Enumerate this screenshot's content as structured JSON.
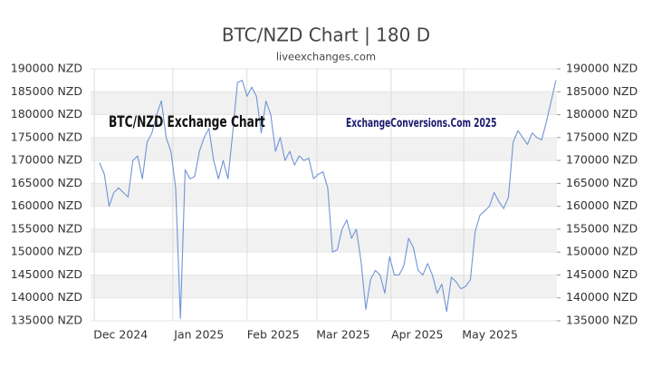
{
  "chart_data": {
    "type": "line",
    "title": "BTC/NZD Chart | 180 D",
    "subtitle": "liveexchanges.com",
    "annotations": [
      "BTC/NZD Exchange Chart",
      "ExchangeConversions.Com 2025"
    ],
    "series": [
      {
        "name": "BTC/NZD",
        "color": "#7094d6",
        "values": [
          169500,
          167000,
          160000,
          163000,
          164000,
          163000,
          162000,
          170000,
          171000,
          166000,
          174000,
          176000,
          180000,
          183000,
          175000,
          172000,
          164000,
          135500,
          168000,
          166000,
          166500,
          172000,
          175000,
          177000,
          170000,
          166000,
          170000,
          166000,
          176000,
          187000,
          187500,
          184000,
          186000,
          184000,
          176000,
          183000,
          180000,
          172000,
          175000,
          170000,
          172000,
          169000,
          171000,
          170000,
          170500,
          166000,
          167000,
          167500,
          164000,
          150000,
          150500,
          155000,
          157000,
          153000,
          155000,
          148000,
          137500,
          144000,
          146000,
          145000,
          141000,
          149000,
          145000,
          145000,
          147000,
          153000,
          151000,
          146000,
          145000,
          147500,
          145000,
          141000,
          143000,
          137000,
          144500,
          143500,
          142000,
          142500,
          144000,
          154500,
          158000,
          159000,
          160000,
          163000,
          161000,
          159500,
          162000,
          174000,
          176500,
          175000,
          173500,
          176000,
          175000,
          174500,
          178500,
          183000,
          187500
        ]
      }
    ],
    "xlim": [
      -1.9,
      96.2
    ],
    "xticks": [
      {
        "value": -1.1,
        "label": "Dec 2024"
      },
      {
        "value": 15.4,
        "label": "Jan 2025"
      },
      {
        "value": 31.0,
        "label": "Feb 2025"
      },
      {
        "value": 45.7,
        "label": "Mar 2025"
      },
      {
        "value": 61.3,
        "label": "Apr 2025"
      },
      {
        "value": 76.6,
        "label": "May 2025"
      }
    ],
    "ylim": [
      135000,
      190000
    ],
    "yticks": [
      {
        "value": 135000,
        "label": "135000 NZD"
      },
      {
        "value": 140000,
        "label": "140000 NZD"
      },
      {
        "value": 145000,
        "label": "145000 NZD"
      },
      {
        "value": 150000,
        "label": "150000 NZD"
      },
      {
        "value": 155000,
        "label": "155000 NZD"
      },
      {
        "value": 160000,
        "label": "160000 NZD"
      },
      {
        "value": 165000,
        "label": "165000 NZD"
      },
      {
        "value": 170000,
        "label": "170000 NZD"
      },
      {
        "value": 175000,
        "label": "175000 NZD"
      },
      {
        "value": 180000,
        "label": "180000 NZD"
      },
      {
        "value": 185000,
        "label": "185000 NZD"
      },
      {
        "value": 190000,
        "label": "190000 NZD"
      }
    ],
    "y2lim": [
      135000,
      190000
    ],
    "y2ticks": [
      {
        "value": 135000,
        "label": "135000 NZD"
      },
      {
        "value": 140000,
        "label": "140000 NZD"
      },
      {
        "value": 145000,
        "label": "145000 NZD"
      },
      {
        "value": 150000,
        "label": "150000 NZD"
      },
      {
        "value": 155000,
        "label": "155000 NZD"
      },
      {
        "value": 160000,
        "label": "160000 NZD"
      },
      {
        "value": 165000,
        "label": "165000 NZD"
      },
      {
        "value": 170000,
        "label": "170000 NZD"
      },
      {
        "value": 175000,
        "label": "175000 NZD"
      },
      {
        "value": 180000,
        "label": "180000 NZD"
      },
      {
        "value": 185000,
        "label": "185000 NZD"
      },
      {
        "value": 190000,
        "label": "190000 NZD"
      }
    ],
    "grid": true
  }
}
